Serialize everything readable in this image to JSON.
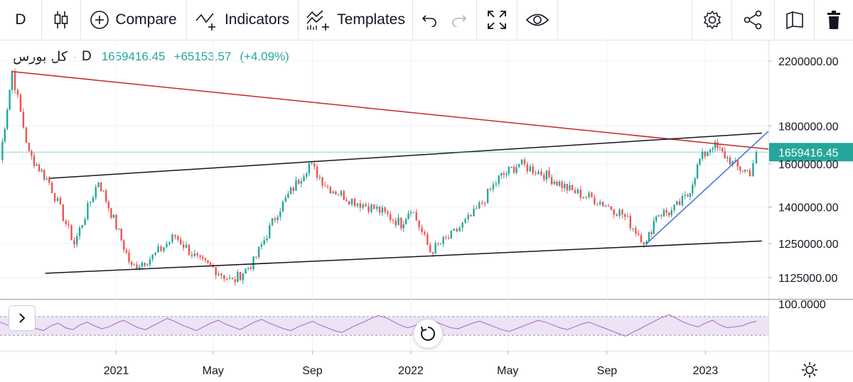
{
  "toolbar": {
    "timeframe": "D",
    "compare_label": "Compare",
    "indicators_label": "Indicators",
    "templates_label": "Templates",
    "icons": [
      "candles-icon",
      "add-circle-icon",
      "indicators-icon",
      "templates-icon",
      "undo-icon",
      "redo-icon",
      "fullscreen-icon",
      "eye-icon",
      "gear-icon",
      "share-icon",
      "snapshot-icon",
      "trash-icon"
    ]
  },
  "legend": {
    "symbol": "کل بورس",
    "timeframe": "D",
    "value": "1659416.45",
    "change": "+65153.57",
    "change_pct": "(+4.09%)"
  },
  "colors": {
    "up": "#26a69a",
    "down": "#ef5350",
    "resistance_line": "#c62828",
    "channel_line": "#131722",
    "support_line": "#3d6fd6",
    "rsi_line": "#9c6bc4",
    "rsi_band": "#ede3f5"
  },
  "chart_data": {
    "type": "candlestick",
    "title": "",
    "scale": "log",
    "current_price_label": "1659416.45",
    "price_axis_ticks": [
      "2200000.00",
      "1800000.00",
      "1600000.00",
      "1400000.00",
      "1250000.00",
      "1125000.00"
    ],
    "price_axis_values": [
      2200000,
      1800000,
      1600000,
      1400000,
      1250000,
      1125000
    ],
    "time_axis_ticks": [
      "2021",
      "May",
      "Sep",
      "2022",
      "May",
      "Sep",
      "2023"
    ],
    "time_axis_dates": [
      "2021-01-01",
      "2021-05-01",
      "2021-09-01",
      "2022-01-01",
      "2022-05-01",
      "2022-09-01",
      "2023-01-01"
    ],
    "x_range": [
      "2020-08-10",
      "2023-03-20"
    ],
    "y_range": [
      1060000,
      2330000
    ],
    "close_series": [
      {
        "date": "2020-08-10",
        "value": 1620000
      },
      {
        "date": "2020-08-25",
        "value": 2130000
      },
      {
        "date": "2020-09-15",
        "value": 1650000
      },
      {
        "date": "2020-10-10",
        "value": 1510000
      },
      {
        "date": "2020-11-10",
        "value": 1250000
      },
      {
        "date": "2020-12-10",
        "value": 1520000
      },
      {
        "date": "2021-01-01",
        "value": 1320000
      },
      {
        "date": "2021-01-20",
        "value": 1160000
      },
      {
        "date": "2021-02-15",
        "value": 1200000
      },
      {
        "date": "2021-03-15",
        "value": 1280000
      },
      {
        "date": "2021-04-15",
        "value": 1180000
      },
      {
        "date": "2021-05-01",
        "value": 1160000
      },
      {
        "date": "2021-05-25",
        "value": 1110000
      },
      {
        "date": "2021-06-20",
        "value": 1180000
      },
      {
        "date": "2021-07-20",
        "value": 1380000
      },
      {
        "date": "2021-08-28",
        "value": 1600000
      },
      {
        "date": "2021-09-20",
        "value": 1490000
      },
      {
        "date": "2021-10-20",
        "value": 1430000
      },
      {
        "date": "2021-11-20",
        "value": 1390000
      },
      {
        "date": "2021-12-20",
        "value": 1330000
      },
      {
        "date": "2022-01-01",
        "value": 1400000
      },
      {
        "date": "2022-01-25",
        "value": 1220000
      },
      {
        "date": "2022-02-20",
        "value": 1280000
      },
      {
        "date": "2022-03-20",
        "value": 1370000
      },
      {
        "date": "2022-04-20",
        "value": 1530000
      },
      {
        "date": "2022-05-15",
        "value": 1600000
      },
      {
        "date": "2022-06-15",
        "value": 1550000
      },
      {
        "date": "2022-07-20",
        "value": 1470000
      },
      {
        "date": "2022-08-20",
        "value": 1430000
      },
      {
        "date": "2022-09-20",
        "value": 1370000
      },
      {
        "date": "2022-10-20",
        "value": 1250000
      },
      {
        "date": "2022-11-01",
        "value": 1370000
      },
      {
        "date": "2022-11-20",
        "value": 1380000
      },
      {
        "date": "2022-12-10",
        "value": 1450000
      },
      {
        "date": "2022-12-25",
        "value": 1620000
      },
      {
        "date": "2023-01-10",
        "value": 1700000
      },
      {
        "date": "2023-01-25",
        "value": 1640000
      },
      {
        "date": "2023-02-10",
        "value": 1580000
      },
      {
        "date": "2023-02-25",
        "value": 1560000
      },
      {
        "date": "2023-03-05",
        "value": 1659416.45
      }
    ],
    "trendlines": [
      {
        "kind": "resistance",
        "from": {
          "date": "2020-08-25",
          "value": 2130000
        },
        "to": {
          "date": "2023-03-20",
          "value": 1675000
        }
      },
      {
        "kind": "channel_upper",
        "from": {
          "date": "2020-10-10",
          "value": 1530000
        },
        "to": {
          "date": "2023-03-12",
          "value": 1760000
        }
      },
      {
        "kind": "channel_lower",
        "from": {
          "date": "2020-10-05",
          "value": 1140000
        },
        "to": {
          "date": "2023-03-12",
          "value": 1260000
        }
      },
      {
        "kind": "support",
        "from": {
          "date": "2022-10-20",
          "value": 1250000
        },
        "to": {
          "date": "2023-03-20",
          "value": 1770000
        }
      }
    ],
    "rsi": {
      "axis_label": "100.0000",
      "upper_band": 70,
      "lower_band": 30,
      "ylim": [
        0,
        100
      ],
      "values": [
        58,
        52,
        48,
        62,
        55,
        44,
        40,
        50,
        56,
        46,
        42,
        52,
        58,
        50,
        44,
        48,
        56,
        62,
        54,
        46,
        42,
        50,
        58,
        66,
        60,
        52,
        46,
        40,
        48,
        56,
        62,
        54,
        48,
        42,
        50,
        58,
        64,
        56,
        50,
        44,
        40,
        48,
        54,
        60,
        52,
        46,
        40,
        36,
        44,
        52,
        58,
        66,
        72,
        68,
        60,
        52,
        46,
        50,
        56,
        62,
        58,
        52,
        46,
        44,
        50,
        56,
        60,
        54,
        48,
        42,
        38,
        44,
        50,
        56,
        62,
        58,
        52,
        46,
        42,
        48,
        54,
        58,
        52,
        46,
        40,
        34,
        28,
        36,
        44,
        52,
        60,
        68,
        74,
        66,
        58,
        52,
        48,
        56,
        62,
        52,
        46,
        48,
        50,
        56,
        60
      ]
    }
  }
}
